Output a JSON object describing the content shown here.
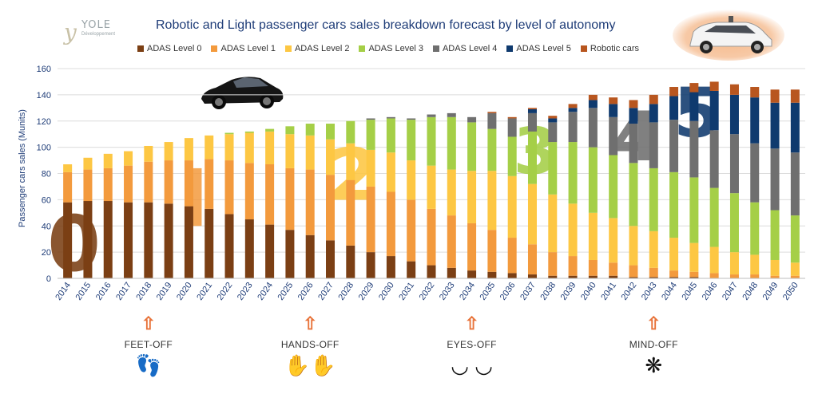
{
  "header": {
    "title": "Robotic and Light passenger cars sales breakdown forecast by level of autonomy",
    "logo_name": "YOLE",
    "logo_sub": "Développement"
  },
  "icons": {
    "logo": "yole-logo-icon",
    "car_top": "self-driving-car-image",
    "car_mid": "sports-car-image"
  },
  "colors": {
    "ADAS Level 0": "#7b3f14",
    "ADAS Level 1": "#f39a3d",
    "ADAS Level 2": "#fdc743",
    "ADAS Level 3": "#a5cf47",
    "ADAS Level 4": "#6f6f6f",
    "ADAS Level 5": "#0f3a6e",
    "Robotic cars": "#b8561f"
  },
  "big_digits": [
    {
      "text": "0",
      "color": "#7b3f14",
      "year": "2014"
    },
    {
      "text": "1",
      "color": "#f39a3d",
      "year": "2020"
    },
    {
      "text": "2",
      "color": "#fdc743",
      "year": "2028"
    },
    {
      "text": "3",
      "color": "#a5cf47",
      "year": "2037"
    },
    {
      "text": "4",
      "color": "#6f6f6f",
      "year": "2042"
    },
    {
      "text": "5",
      "color": "#0f3a6e",
      "year": "2045"
    }
  ],
  "milestones": [
    {
      "label": "FEET-OFF",
      "year": "2018",
      "icon": "feet-icon",
      "glyph": "👣"
    },
    {
      "label": "HANDS-OFF",
      "year": "2026",
      "icon": "hands-icon",
      "glyph": "✋✋"
    },
    {
      "label": "EYES-OFF",
      "year": "2034",
      "icon": "closed-eyes-icon",
      "glyph": "◡ ◡"
    },
    {
      "label": "MIND-OFF",
      "year": "2043",
      "icon": "brain-icon",
      "glyph": "❋"
    }
  ],
  "chart_data": {
    "type": "bar",
    "stacked": true,
    "title": "Robotic and Light passenger cars sales breakdown forecast by level of autonomy",
    "ylabel": "Passenger cars sales (Munits)",
    "xlabel": "",
    "ylim": [
      0,
      160
    ],
    "yticks": [
      0,
      20,
      40,
      60,
      80,
      100,
      120,
      140,
      160
    ],
    "grid": true,
    "legend_position": "top",
    "categories": [
      "2014",
      "2015",
      "2016",
      "2017",
      "2018",
      "2019",
      "2020",
      "2021",
      "2022",
      "2023",
      "2024",
      "2025",
      "2026",
      "2027",
      "2028",
      "2029",
      "2030",
      "2031",
      "2032",
      "2033",
      "2034",
      "2035",
      "2036",
      "2037",
      "2038",
      "2039",
      "2040",
      "2041",
      "2042",
      "2043",
      "2044",
      "2045",
      "2046",
      "2047",
      "2048",
      "2049",
      "2050"
    ],
    "series": [
      {
        "name": "ADAS Level 0",
        "values": [
          58,
          59,
          59,
          58,
          58,
          57,
          55,
          53,
          49,
          45,
          41,
          37,
          33,
          29,
          25,
          20,
          17,
          13,
          10,
          8,
          6,
          5,
          4,
          3,
          2,
          2,
          2,
          2,
          1,
          1,
          1,
          1,
          0,
          0,
          0,
          0,
          0
        ]
      },
      {
        "name": "ADAS Level 1",
        "values": [
          23,
          24,
          25,
          28,
          31,
          33,
          35,
          38,
          41,
          43,
          46,
          47,
          50,
          50,
          50,
          50,
          49,
          47,
          43,
          40,
          36,
          32,
          27,
          23,
          18,
          15,
          12,
          10,
          9,
          7,
          5,
          4,
          4,
          3,
          3,
          2,
          2
        ]
      },
      {
        "name": "ADAS Level 2",
        "values": [
          6,
          9,
          11,
          11,
          12,
          14,
          17,
          18,
          20,
          23,
          25,
          26,
          26,
          27,
          28,
          28,
          30,
          30,
          33,
          35,
          40,
          45,
          47,
          46,
          44,
          40,
          36,
          34,
          30,
          28,
          25,
          22,
          20,
          17,
          15,
          12,
          10
        ]
      },
      {
        "name": "ADAS Level 3",
        "values": [
          0,
          0,
          0,
          0,
          0,
          0,
          0,
          0,
          1,
          1,
          2,
          6,
          9,
          12,
          17,
          23,
          26,
          31,
          37,
          40,
          37,
          32,
          30,
          40,
          40,
          47,
          50,
          48,
          48,
          48,
          50,
          50,
          45,
          45,
          40,
          38,
          36
        ]
      },
      {
        "name": "ADAS Level 4",
        "values": [
          0,
          0,
          0,
          0,
          0,
          0,
          0,
          0,
          0,
          0,
          0,
          0,
          0,
          0,
          0,
          1,
          1,
          1,
          2,
          3,
          4,
          12,
          14,
          14,
          15,
          23,
          30,
          29,
          30,
          35,
          40,
          43,
          44,
          45,
          45,
          47,
          48
        ]
      },
      {
        "name": "ADAS Level 5",
        "values": [
          0,
          0,
          0,
          0,
          0,
          0,
          0,
          0,
          0,
          0,
          0,
          0,
          0,
          0,
          0,
          0,
          0,
          0,
          0,
          0,
          0,
          0,
          0,
          3,
          3,
          3,
          6,
          10,
          12,
          14,
          18,
          22,
          30,
          30,
          35,
          35,
          38
        ]
      },
      {
        "name": "Robotic cars",
        "values": [
          0,
          0,
          0,
          0,
          0,
          0,
          0,
          0,
          0,
          0,
          0,
          0,
          0,
          0,
          0,
          0,
          0,
          0,
          0,
          0,
          0,
          1,
          1,
          1,
          2,
          3,
          4,
          5,
          6,
          7,
          7,
          7,
          7,
          8,
          8,
          10,
          10
        ]
      }
    ]
  }
}
